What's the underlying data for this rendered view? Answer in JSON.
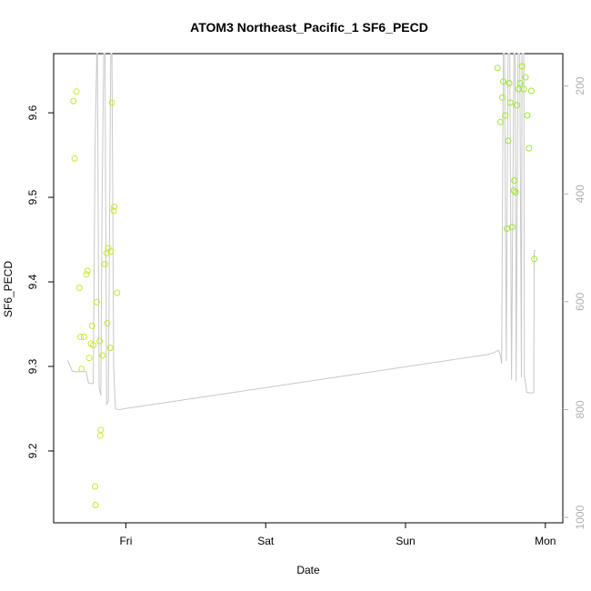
{
  "chart_data": {
    "type": "scatter",
    "title": "ATOM3 Northeast_Pacific_1 SF6_PECD",
    "xlabel": "Date",
    "ylabel": "SF6_PECD",
    "x_ticks": [
      {
        "label": "Fri",
        "value": 0
      },
      {
        "label": "Sat",
        "value": 24
      },
      {
        "label": "Sun",
        "value": 48
      },
      {
        "label": "Mon",
        "value": 72
      }
    ],
    "x_unit": "hours from Fri 00:00",
    "xlim": [
      -12.4,
      75.0
    ],
    "ylim": [
      9.115,
      9.67
    ],
    "y_ticks": [
      9.2,
      9.3,
      9.4,
      9.5,
      9.6
    ],
    "right_axis": {
      "label": "",
      "inverted": true,
      "ylim": [
        1010,
        140
      ],
      "ticks": [
        200,
        400,
        600,
        800,
        1000
      ],
      "color": "#b0b0b0"
    },
    "grid": false,
    "series": [
      {
        "marker": "circle-open",
        "color_gradient": [
          "#cfe62a",
          "#7fe62a"
        ],
        "points": [
          {
            "x": -9.0,
            "y": 9.614,
            "c": "#c8e82c"
          },
          {
            "x": -8.5,
            "y": 9.625,
            "c": "#c8e82c"
          },
          {
            "x": -8.8,
            "y": 9.546,
            "c": "#c8e82c"
          },
          {
            "x": -8.0,
            "y": 9.393,
            "c": "#c8e82c"
          },
          {
            "x": -7.8,
            "y": 9.335,
            "c": "#c8e82c"
          },
          {
            "x": -7.2,
            "y": 9.335,
            "c": "#c8e82c"
          },
          {
            "x": -7.6,
            "y": 9.297,
            "c": "#c8e82c"
          },
          {
            "x": -6.6,
            "y": 9.413,
            "c": "#c8e82c"
          },
          {
            "x": -6.8,
            "y": 9.409,
            "c": "#c8e82c"
          },
          {
            "x": -6.3,
            "y": 9.31,
            "c": "#c8e82c"
          },
          {
            "x": -6.0,
            "y": 9.327,
            "c": "#c8e82c"
          },
          {
            "x": -5.8,
            "y": 9.348,
            "c": "#c8e82c"
          },
          {
            "x": -5.6,
            "y": 9.325,
            "c": "#c8e82c"
          },
          {
            "x": -5.0,
            "y": 9.376,
            "c": "#c8e82c"
          },
          {
            "x": -5.3,
            "y": 9.158,
            "c": "#cfe62a"
          },
          {
            "x": -5.2,
            "y": 9.136,
            "c": "#cfe62a"
          },
          {
            "x": -4.5,
            "y": 9.33,
            "c": "#c8e82c"
          },
          {
            "x": -4.3,
            "y": 9.225,
            "c": "#cfe62a"
          },
          {
            "x": -4.4,
            "y": 9.218,
            "c": "#cfe62a"
          },
          {
            "x": -4.0,
            "y": 9.313,
            "c": "#c8e82c"
          },
          {
            "x": -3.6,
            "y": 9.421,
            "c": "#c8e82c"
          },
          {
            "x": -3.3,
            "y": 9.434,
            "c": "#c8e82c"
          },
          {
            "x": -3.0,
            "y": 9.44,
            "c": "#c8e82c"
          },
          {
            "x": -3.2,
            "y": 9.351,
            "c": "#c8e82c"
          },
          {
            "x": -2.6,
            "y": 9.436,
            "c": "#c8e82c"
          },
          {
            "x": -2.4,
            "y": 9.612,
            "c": "#c8e82c"
          },
          {
            "x": -2.7,
            "y": 9.322,
            "c": "#c8e82c"
          },
          {
            "x": -2.0,
            "y": 9.489,
            "c": "#c8e82c"
          },
          {
            "x": -2.1,
            "y": 9.484,
            "c": "#c8e82c"
          },
          {
            "x": -1.5,
            "y": 9.387,
            "c": "#c8e82c"
          },
          {
            "x": 63.8,
            "y": 9.653,
            "c": "#9ee82c"
          },
          {
            "x": 64.3,
            "y": 9.589,
            "c": "#9ee82c"
          },
          {
            "x": 64.6,
            "y": 9.618,
            "c": "#9ee82c"
          },
          {
            "x": 64.8,
            "y": 9.637,
            "c": "#9ee82c"
          },
          {
            "x": 65.1,
            "y": 9.597,
            "c": "#9ee82c"
          },
          {
            "x": 65.4,
            "y": 9.463,
            "c": "#9ee82c"
          },
          {
            "x": 65.6,
            "y": 9.567,
            "c": "#9ee82c"
          },
          {
            "x": 65.8,
            "y": 9.635,
            "c": "#9ee82c"
          },
          {
            "x": 66.0,
            "y": 9.612,
            "c": "#9ee82c"
          },
          {
            "x": 66.3,
            "y": 9.465,
            "c": "#9ee82c"
          },
          {
            "x": 66.6,
            "y": 9.508,
            "c": "#9ee82c"
          },
          {
            "x": 66.7,
            "y": 9.52,
            "c": "#9ee82c"
          },
          {
            "x": 66.9,
            "y": 9.506,
            "c": "#9ee82c"
          },
          {
            "x": 67.1,
            "y": 9.609,
            "c": "#9ee82c"
          },
          {
            "x": 67.4,
            "y": 9.628,
            "c": "#9ee82c"
          },
          {
            "x": 67.7,
            "y": 9.635,
            "c": "#9ee82c"
          },
          {
            "x": 68.0,
            "y": 9.655,
            "c": "#9ee82c"
          },
          {
            "x": 68.3,
            "y": 9.628,
            "c": "#9ee82c"
          },
          {
            "x": 68.6,
            "y": 9.642,
            "c": "#9ee82c"
          },
          {
            "x": 68.9,
            "y": 9.597,
            "c": "#9ee82c"
          },
          {
            "x": 69.2,
            "y": 9.558,
            "c": "#9ee82c"
          },
          {
            "x": 69.6,
            "y": 9.626,
            "c": "#9ee82c"
          },
          {
            "x": 70.1,
            "y": 9.427,
            "c": "#9ee82c"
          }
        ]
      },
      {
        "type": "line",
        "axis": "right",
        "color": "#c8c8c8",
        "points": [
          [
            -10.0,
            709
          ],
          [
            -9.6,
            718
          ],
          [
            -9.2,
            729
          ],
          [
            -8.7,
            730
          ],
          [
            -7.6,
            730
          ],
          [
            -6.8,
            730
          ],
          [
            -6.4,
            751
          ],
          [
            -5.9,
            752
          ],
          [
            -5.6,
            751
          ],
          [
            -5.3,
            320
          ],
          [
            -5.0,
            140
          ],
          [
            -4.9,
            140
          ],
          [
            -4.6,
            760
          ],
          [
            -4.3,
            774
          ],
          [
            -4.1,
            430
          ],
          [
            -3.8,
            140
          ],
          [
            -3.6,
            140
          ],
          [
            -3.3,
            790
          ],
          [
            -3.0,
            785
          ],
          [
            -2.8,
            450
          ],
          [
            -2.6,
            140
          ],
          [
            -2.4,
            140
          ],
          [
            -2.1,
            720
          ],
          [
            -1.8,
            798
          ],
          [
            -1.5,
            800
          ],
          [
            -1.0,
            800
          ],
          [
            -0.5,
            799
          ],
          [
            0,
            798
          ],
          [
            62.0,
            698
          ],
          [
            63.0,
            695
          ],
          [
            64.0,
            690
          ],
          [
            64.3,
            701
          ],
          [
            64.5,
            715
          ],
          [
            64.8,
            140
          ],
          [
            65.0,
            140
          ],
          [
            65.3,
            710
          ],
          [
            65.6,
            140
          ],
          [
            65.9,
            140
          ],
          [
            66.2,
            745
          ],
          [
            66.6,
            140
          ],
          [
            66.8,
            140
          ],
          [
            67.0,
            748
          ],
          [
            67.3,
            140
          ],
          [
            67.6,
            140
          ],
          [
            67.9,
            740
          ],
          [
            68.0,
            140
          ],
          [
            68.3,
            140
          ],
          [
            68.4,
            735
          ],
          [
            68.8,
            768
          ],
          [
            69.5,
            769
          ],
          [
            70.0,
            769
          ],
          [
            70.1,
            505
          ],
          [
            70.3,
            505
          ]
        ]
      }
    ]
  }
}
